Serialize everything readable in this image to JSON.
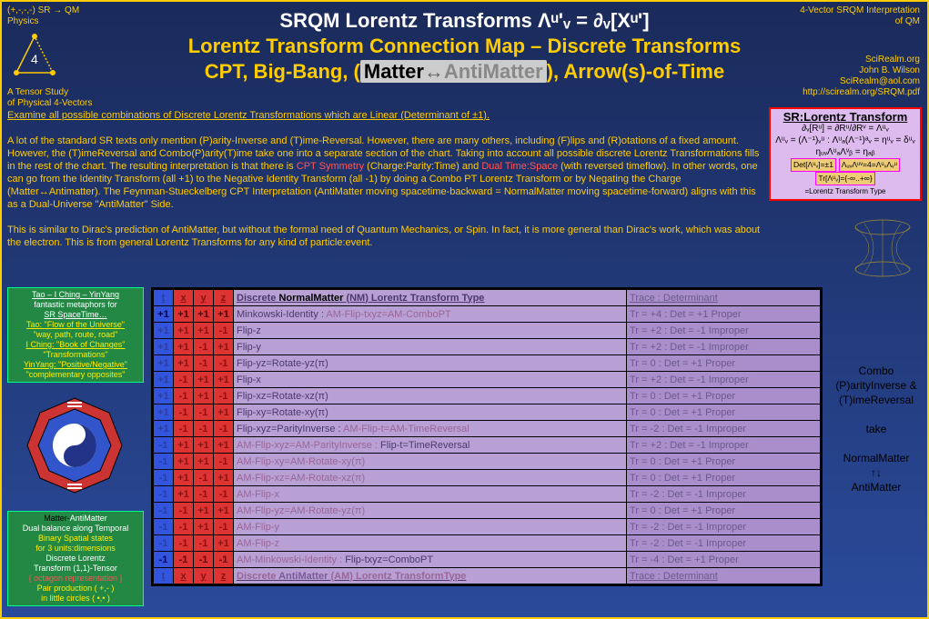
{
  "header": {
    "tl_line1": "(+,-,-,-) SR → QM",
    "tl_line2": "Physics",
    "tr_line1": "4-Vector SRQM Interpretation",
    "tr_line2": "of QM",
    "title1": "SRQM Lorentz Transforms  Λᵘ'ᵥ = ∂ᵥ[Xᵘ']",
    "title2": "Lorentz Transform Connection Map – Discrete Transforms",
    "title3_pre": "CPT, Big-Bang, (",
    "title3_m1": "Matter",
    "title3_arr": "↔",
    "title3_m2": "AntiMatter",
    "title3_post": "), Arrow(s)-of-Time",
    "bl_line1": "A Tensor Study",
    "bl_line2": "of Physical 4-Vectors",
    "br_1": "SciRealm.org",
    "br_2": "John B. Wilson",
    "br_3": "SciRealm@aol.com",
    "br_4": "http://scirealm.org/SRQM.pdf",
    "icon_num": "4"
  },
  "intro": {
    "l1": "Examine all possible combinations of Discrete Lorentz Transformations which are Linear (Determinant of ±1).",
    "p1": "A lot of the standard SR texts only mention (P)arity-Inverse and (T)ime-Reversal.  However, there are many others, including (F)lips and (R)otations of a fixed amount.  However, the (T)imeReversal and Combo(P)arity(T)ime take one into a separate section of the chart. Taking into account all possible discrete Lorentz Transformations fills in the rest of the chart.  The resulting interpretation is that there is ",
    "cpt": "CPT Symmetry",
    "p1b": " (Charge:Parity:Time) and ",
    "dual": "Dual Time:Space",
    "p1c": " (with reversed timeflow). In other words, one can go from the Identity Transform (all +1) to the Negative Identity Transform (all -1) by doing a Combo PT Lorentz Transform or by Negating the Charge (Matter↔Antimatter).  The Feynman-Stueckelberg CPT Interpretation (AntiMatter moving spacetime-backward = NormalMatter moving spacetime-forward) aligns with this as a Dual-Universe \"AntiMatter\" Side.",
    "p2": "This is similar to Dirac's prediction of AntiMatter, but without the formal need of Quantum Mechanics, or Spin. In fact, it is more general than Dirac's work, which was about the electron.  This is from general Lorentz Transforms for any kind of particle:event."
  },
  "lorentz": {
    "title": "SR:Lorentz Transform",
    "l1": "∂ᵥ[Rᵘ] = ∂Rᵘ/∂Rᵛ = Λᵘᵥ",
    "l2": "Λᵘᵥ = (Λ⁻¹)ᵥᵘ : Λᵘₐ(Λ⁻¹)ᵃᵥ = ηᵘᵥ = δᵘᵥ",
    "l3": "ηᵤᵥΛᵘₐΛᵛᵦ  = ηₐᵦ",
    "d1": "Det[Λᵘᵥ]=±1",
    "d2": "ΛᵤᵥΛᵘᵛ=4=ΛᵘᵥΛᵥᵘ",
    "d3": "Tr[Λᵘᵥ]={-∞..+∞}",
    "d4": "=Lorentz Transform Type"
  },
  "rnote": {
    "l1": "Combo",
    "l2": "(P)arityInverse &",
    "l3": "(T)imeReversal",
    "l4": "take",
    "l5": "NormalMatter",
    "l6": "↑↓",
    "l7": "AntiMatter"
  },
  "green1": {
    "l1": "Tao – I Ching – YinYang",
    "l2": "fantastic metaphors for",
    "l3": "SR SpaceTime…",
    "l4": "Tao: \"Flow of the Universe\"",
    "l5": "\"way, path, route, road\"",
    "l6": "I Ching: \"Book of Changes\"",
    "l7": "\"Transformations\"",
    "l8": "YinYang: \"Positive/Negative\"",
    "l9": "\"complementary opposites\""
  },
  "green2": {
    "l1a": "Matter-",
    "l1b": "AntiMatter",
    "l2": "Dual balance along Temporal",
    "l3": "Binary Spatial states",
    "l4": "for 3 units:dimensions",
    "l5": "Discrete Lorentz",
    "l6": "Transform (1,1)-Tensor",
    "l7": "{ octagon representation }",
    "l8": "Pair production ( +,- )",
    "l9": "in little circles ( •,• )"
  },
  "table": {
    "cols": [
      "t",
      "x",
      "y",
      "z"
    ],
    "hdr_desc_nm": "Discrete NormalMatter (NM) Lorentz Transform Type",
    "hdr_desc_am": "Discrete AntiMatter (AM) Lorentz TransformType",
    "hdr_trace": "Trace : Determinant",
    "rows_top": [
      {
        "s": [
          "+1",
          "+1",
          "+1",
          "+1"
        ],
        "bold": true,
        "d": "Minkowski-Identity : ",
        "am": "AM-Flip-txyz=AM-ComboPT",
        "tr": "Tr = +4 : Det = +1 Proper"
      },
      {
        "s": [
          "+1",
          "+1",
          "+1",
          "-1"
        ],
        "d": "Flip-z",
        "tr": "Tr = +2 : Det = -1 Improper"
      },
      {
        "s": [
          "+1",
          "+1",
          "-1",
          "+1"
        ],
        "d": "Flip-y",
        "tr": "Tr = +2 : Det = -1 Improper"
      },
      {
        "s": [
          "+1",
          "+1",
          "-1",
          "-1"
        ],
        "d": "Flip-yz=Rotate-yz(π)",
        "tr": "Tr = 0   : Det = +1 Proper"
      },
      {
        "s": [
          "+1",
          "-1",
          "+1",
          "+1"
        ],
        "d": "Flip-x",
        "tr": "Tr = +2 : Det = -1 Improper"
      },
      {
        "s": [
          "+1",
          "-1",
          "+1",
          "-1"
        ],
        "d": "Flip-xz=Rotate-xz(π)",
        "tr": "Tr = 0   : Det = +1 Proper"
      },
      {
        "s": [
          "+1",
          "-1",
          "-1",
          "+1"
        ],
        "d": "Flip-xy=Rotate-xy(π)",
        "tr": "Tr = 0   : Det = +1 Proper"
      },
      {
        "s": [
          "+1",
          "-1",
          "-1",
          "-1"
        ],
        "d": "Flip-xyz=ParityInverse : ",
        "am": "AM-Flip-t=AM-TimeReversal",
        "tr": "Tr = -2  : Det = -1 Improper"
      }
    ],
    "rows_bot": [
      {
        "s": [
          "-1",
          "+1",
          "+1",
          "+1"
        ],
        "am": "AM-Flip-xyz=AM-ParityInverse : ",
        "d": "Flip-t=TimeReversal",
        "tr": "Tr = +2 : Det = -1 Improper"
      },
      {
        "s": [
          "-1",
          "+1",
          "+1",
          "-1"
        ],
        "am": "AM-Flip-xy=AM-Rotate-xy(π)",
        "tr": "Tr = 0   : Det = +1 Proper"
      },
      {
        "s": [
          "-1",
          "+1",
          "-1",
          "+1"
        ],
        "am": "AM-Flip-xz=AM-Rotate-xz(π)",
        "tr": "Tr = 0   : Det = +1 Proper"
      },
      {
        "s": [
          "-1",
          "+1",
          "-1",
          "-1"
        ],
        "am": "AM-Flip-x",
        "tr": "Tr = -2  : Det = -1 Improper"
      },
      {
        "s": [
          "-1",
          "-1",
          "+1",
          "+1"
        ],
        "am": "AM-Flip-yz=AM-Rotate-yz(π)",
        "tr": "Tr = 0   : Det = +1 Proper"
      },
      {
        "s": [
          "-1",
          "-1",
          "+1",
          "-1"
        ],
        "am": "AM-Flip-y",
        "tr": "Tr = -2  : Det = -1 Improper"
      },
      {
        "s": [
          "-1",
          "-1",
          "-1",
          "+1"
        ],
        "am": "AM-Flip-z",
        "tr": "Tr = -2  : Det = -1 Improper"
      },
      {
        "s": [
          "-1",
          "-1",
          "-1",
          "-1"
        ],
        "bold": true,
        "am": "AM-Minkowski-Identity : ",
        "d": "Flip-txyz=ComboPT",
        "tr": "Tr = -4  : Det = +1 Proper"
      }
    ]
  }
}
